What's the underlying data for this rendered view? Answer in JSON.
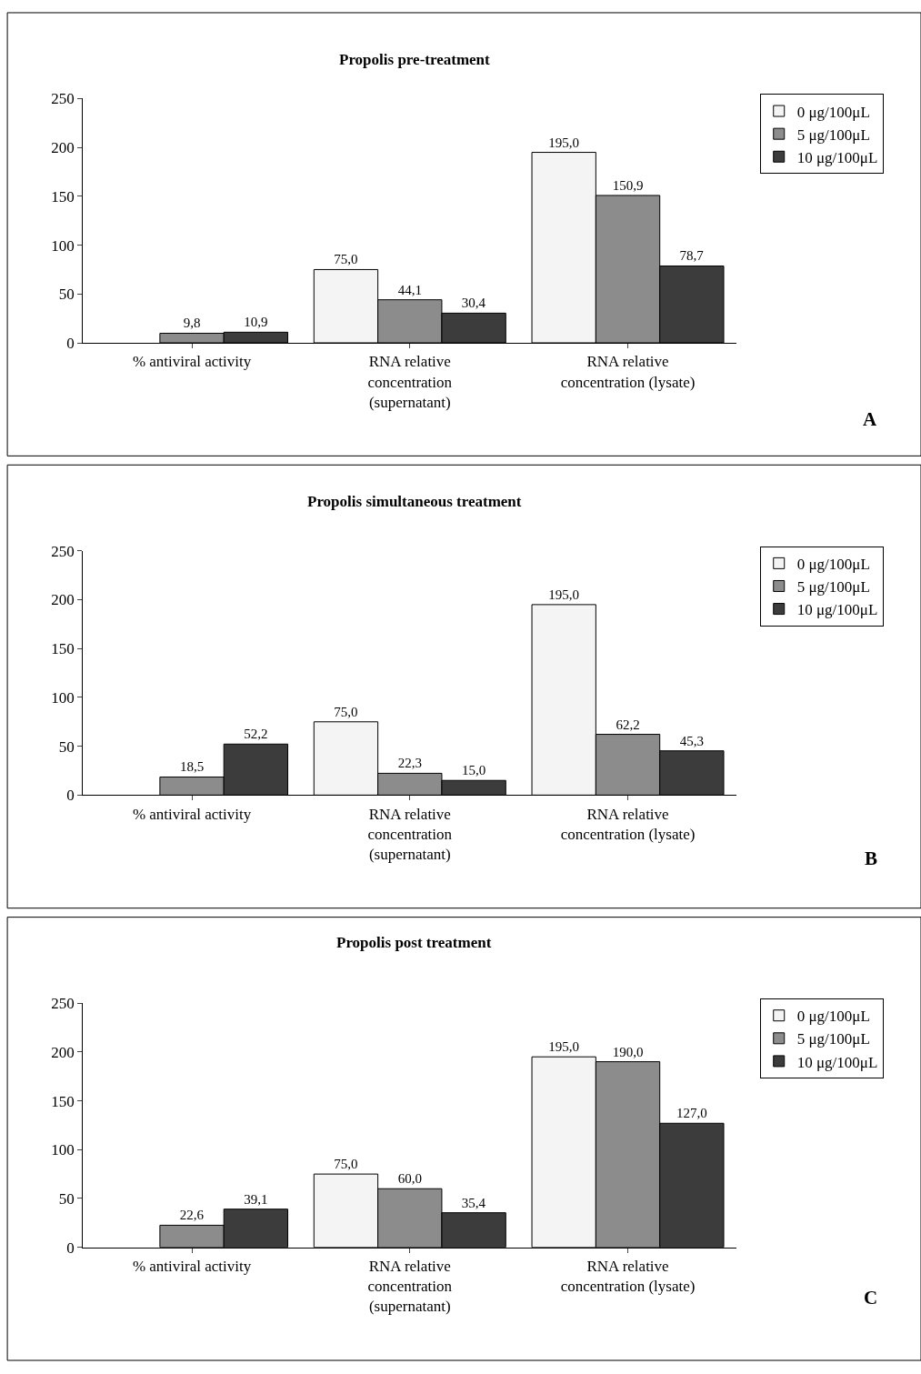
{
  "chart_data": [
    {
      "type": "bar",
      "title": "Propolis pre-treatment",
      "categories": [
        "% antiviral activity",
        "RNA relative concentration (supernatant)",
        "RNA relative concentration (lysate)"
      ],
      "series": [
        {
          "name": "0 μg/100μL",
          "color": "#f4f4f4",
          "values": [
            null,
            75.0,
            195.0
          ],
          "value_labels": [
            null,
            "75,0",
            "195,0"
          ]
        },
        {
          "name": "5 μg/100μL",
          "color": "#8c8c8c",
          "values": [
            9.8,
            44.1,
            150.9
          ],
          "value_labels": [
            "9,8",
            "44,1",
            "150,9"
          ]
        },
        {
          "name": "10 μg/100μL",
          "color": "#3c3c3c",
          "values": [
            10.9,
            30.4,
            78.7
          ],
          "value_labels": [
            "10,9",
            "30,4",
            "78,7"
          ]
        }
      ],
      "ylim": [
        0,
        250
      ],
      "yticks": [
        0,
        50,
        100,
        150,
        200,
        250
      ],
      "legend": "top right",
      "annotations": [
        "A"
      ]
    },
    {
      "type": "bar",
      "title": "Propolis simultaneous treatment",
      "categories": [
        "% antiviral activity",
        "RNA relative concentration (supernatant)",
        "RNA relative concentration (lysate)"
      ],
      "series": [
        {
          "name": "0 μg/100μL",
          "color": "#f4f4f4",
          "values": [
            null,
            75.0,
            195.0
          ],
          "value_labels": [
            null,
            "75,0",
            "195,0"
          ]
        },
        {
          "name": "5 μg/100μL",
          "color": "#8c8c8c",
          "values": [
            18.5,
            22.3,
            62.2
          ],
          "value_labels": [
            "18,5",
            "22,3",
            "62,2"
          ]
        },
        {
          "name": "10 μg/100μL",
          "color": "#3c3c3c",
          "values": [
            52.2,
            15.0,
            45.3
          ],
          "value_labels": [
            "52,2",
            "15,0",
            "45,3"
          ]
        }
      ],
      "ylim": [
        0,
        250
      ],
      "yticks": [
        0,
        50,
        100,
        150,
        200,
        250
      ],
      "legend": "top right",
      "annotations": [
        "B"
      ]
    },
    {
      "type": "bar",
      "title": "Propolis post treatment",
      "categories": [
        "% antiviral activity",
        "RNA relative concentration (supernatant)",
        "RNA relative concentration (lysate)"
      ],
      "series": [
        {
          "name": "0 μg/100μL",
          "color": "#f4f4f4",
          "values": [
            null,
            75.0,
            195.0
          ],
          "value_labels": [
            null,
            "75,0",
            "195,0"
          ]
        },
        {
          "name": "5 μg/100μL",
          "color": "#8c8c8c",
          "values": [
            22.6,
            60.0,
            190.0
          ],
          "value_labels": [
            "22,6",
            "60,0",
            "190,0"
          ]
        },
        {
          "name": "10 μg/100μL",
          "color": "#3c3c3c",
          "values": [
            39.1,
            35.4,
            127.0
          ],
          "value_labels": [
            "39,1",
            "35,4",
            "127,0"
          ]
        }
      ],
      "ylim": [
        0,
        250
      ],
      "yticks": [
        0,
        50,
        100,
        150,
        200,
        250
      ],
      "legend": "top right",
      "annotations": [
        "C"
      ]
    }
  ]
}
